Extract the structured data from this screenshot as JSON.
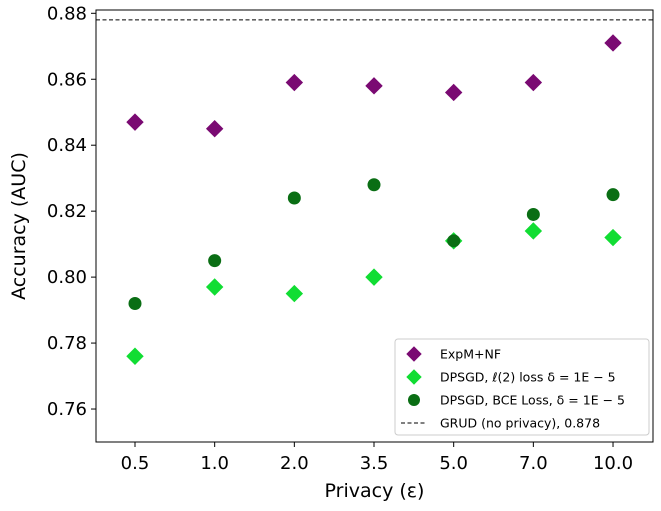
{
  "chart_data": {
    "type": "scatter",
    "xlabel": "Privacy (ε)",
    "ylabel": "Accuracy (AUC)",
    "categories": [
      "0.5",
      "1.0",
      "2.0",
      "3.5",
      "5.0",
      "7.0",
      "10.0"
    ],
    "ylim": [
      0.75,
      0.881
    ],
    "yticks": [
      "0.76",
      "0.78",
      "0.80",
      "0.82",
      "0.84",
      "0.86",
      "0.88"
    ],
    "grid": false,
    "legend_position": "bottom-right",
    "series": [
      {
        "name": "ExpM+NF",
        "marker": "diamond",
        "color": "#7a0a72",
        "values": [
          0.847,
          0.845,
          0.859,
          0.858,
          0.856,
          0.859,
          0.871
        ]
      },
      {
        "name": "DPSGD, ℓ(2) loss δ = 1E − 5",
        "marker": "diamond",
        "color": "#11dd33",
        "values": [
          0.776,
          0.797,
          0.795,
          0.8,
          0.811,
          0.814,
          0.812
        ]
      },
      {
        "name": "DPSGD, BCE Loss, δ = 1E − 5",
        "marker": "circle",
        "color": "#0a6e14",
        "values": [
          0.792,
          0.805,
          0.824,
          0.828,
          0.811,
          0.819,
          0.825
        ]
      }
    ],
    "reference_line": {
      "name": "GRUD (no privacy), 0.878",
      "value": 0.878,
      "style": "dashed",
      "color": "#000000"
    }
  }
}
